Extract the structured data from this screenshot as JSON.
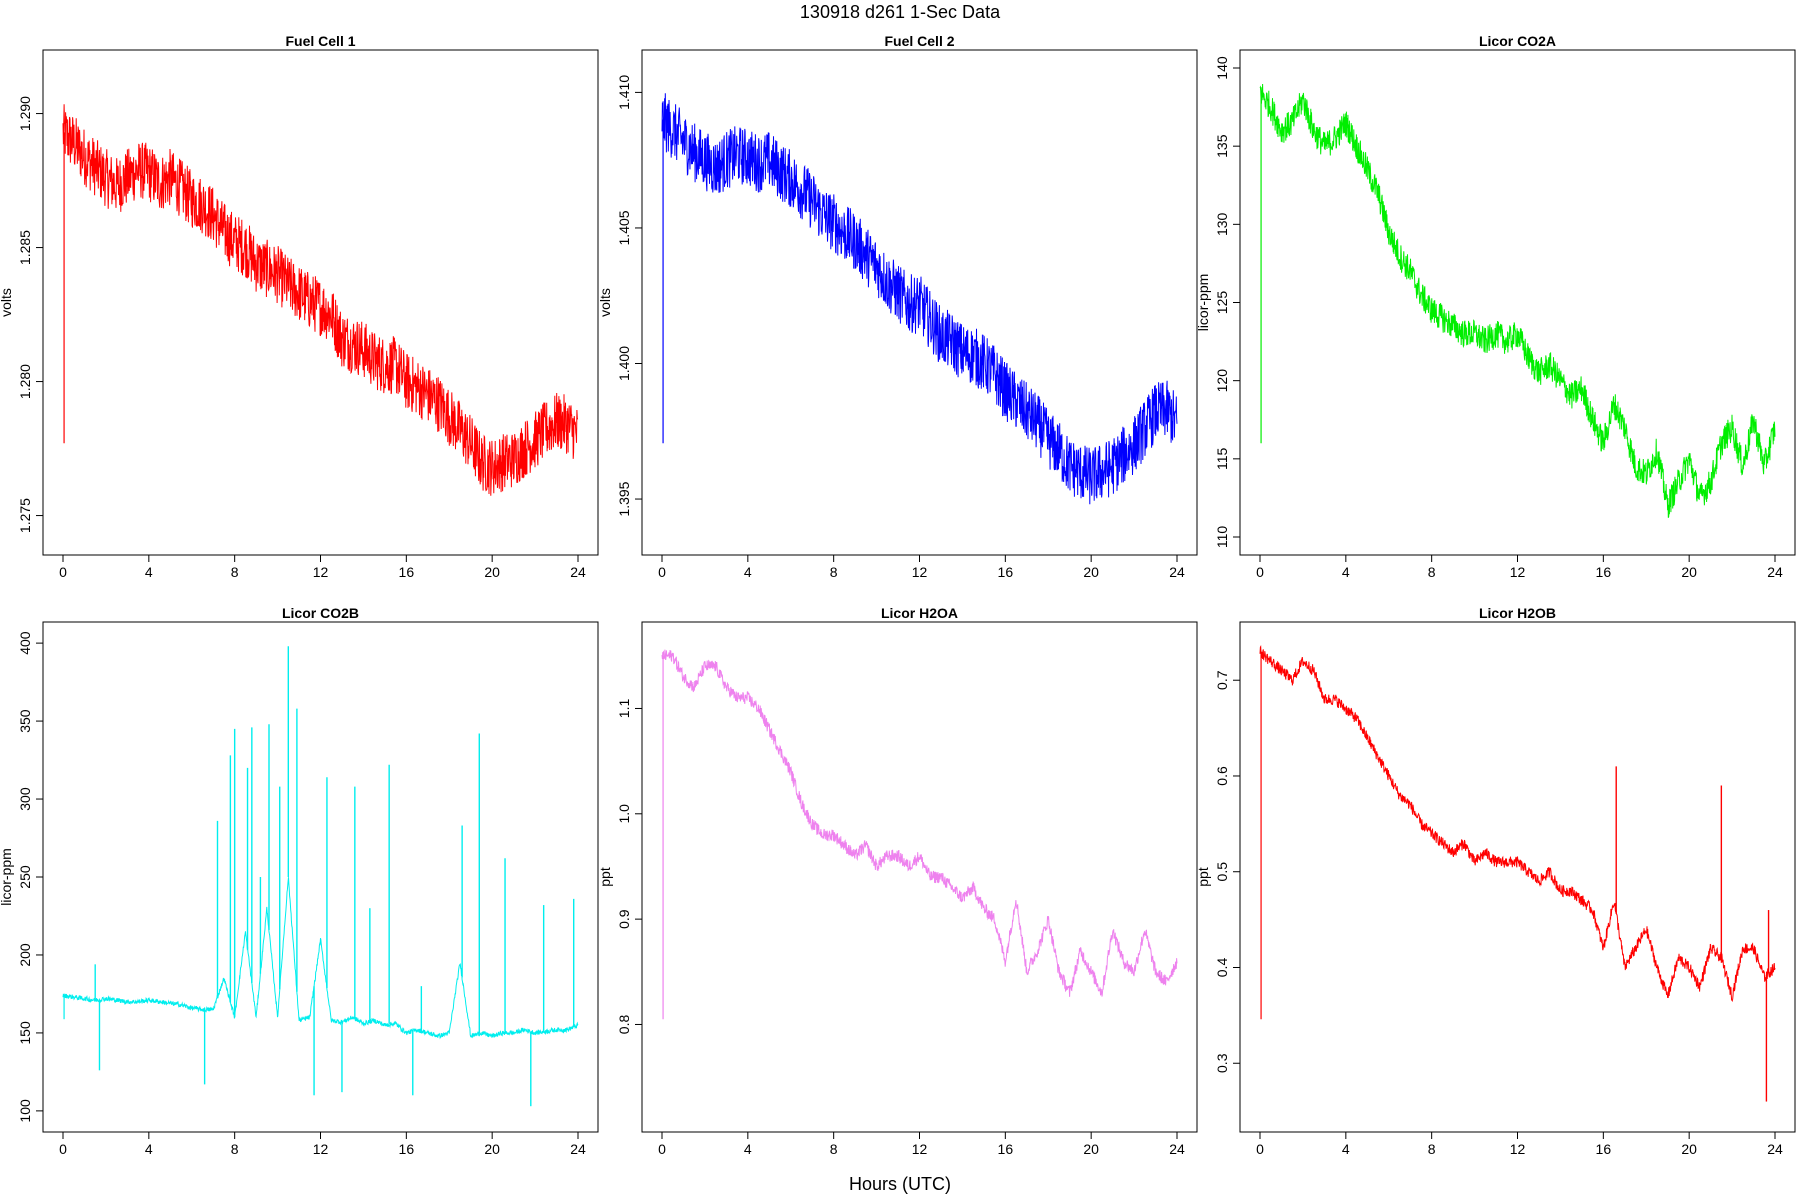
{
  "figure": {
    "title": "130918   d261   1-Sec Data",
    "xlabel": "Hours (UTC)"
  },
  "chart_data": [
    {
      "type": "line",
      "title": "Fuel Cell 1",
      "ylabel": "volts",
      "color": "#ff0000",
      "xlim": [
        0,
        24
      ],
      "ylim": [
        1.2742,
        1.2917
      ],
      "xticks": [
        0,
        4,
        8,
        12,
        16,
        20,
        24
      ],
      "yticks": [
        1.275,
        1.28,
        1.285,
        1.29
      ],
      "ytick_labels": [
        "1.275",
        "1.280",
        "1.285",
        "1.290"
      ],
      "noise": 0.0011,
      "x": [
        0,
        0.5,
        1,
        1.5,
        2,
        2.5,
        3,
        3.5,
        4,
        4.5,
        5,
        5.5,
        6,
        6.5,
        7,
        7.5,
        8,
        8.5,
        9,
        9.5,
        10,
        10.5,
        11,
        11.5,
        12,
        12.5,
        13,
        13.5,
        14,
        14.5,
        15,
        15.5,
        16,
        16.5,
        17,
        17.5,
        18,
        18.5,
        19,
        19.5,
        20,
        20.5,
        21,
        21.5,
        22,
        22.5,
        23,
        23.5,
        24
      ],
      "y": [
        1.2893,
        1.2889,
        1.2884,
        1.288,
        1.2876,
        1.2873,
        1.2876,
        1.2879,
        1.2878,
        1.2874,
        1.2876,
        1.2872,
        1.2868,
        1.2866,
        1.2862,
        1.2856,
        1.2852,
        1.285,
        1.2844,
        1.2842,
        1.284,
        1.2836,
        1.2833,
        1.283,
        1.2828,
        1.2825,
        1.2816,
        1.2814,
        1.2812,
        1.2808,
        1.2806,
        1.2806,
        1.28,
        1.2798,
        1.2795,
        1.2792,
        1.2787,
        1.2782,
        1.2777,
        1.277,
        1.2768,
        1.277,
        1.2771,
        1.2775,
        1.2778,
        1.2782,
        1.2785,
        1.2784,
        1.278
      ]
    },
    {
      "type": "line",
      "title": "Fuel Cell 2",
      "ylabel": "volts",
      "color": "#0000ff",
      "xlim": [
        0,
        24
      ],
      "ylim": [
        1.3936,
        1.4109
      ],
      "xticks": [
        0,
        4,
        8,
        12,
        16,
        20,
        24
      ],
      "yticks": [
        1.395,
        1.4,
        1.405,
        1.41
      ],
      "ytick_labels": [
        "1.395",
        "1.400",
        "1.405",
        "1.410"
      ],
      "noise": 0.0011,
      "x": [
        0,
        0.5,
        1,
        1.5,
        2,
        2.5,
        3,
        3.5,
        4,
        4.5,
        5,
        5.5,
        6,
        6.5,
        7,
        7.5,
        8,
        8.5,
        9,
        9.5,
        10,
        10.5,
        11,
        11.5,
        12,
        12.5,
        13,
        13.5,
        14,
        14.5,
        15,
        15.5,
        16,
        16.5,
        17,
        17.5,
        18,
        18.5,
        19,
        19.5,
        20,
        20.5,
        21,
        21.5,
        22,
        22.5,
        23,
        23.5,
        24
      ],
      "y": [
        1.409,
        1.4086,
        1.4082,
        1.4078,
        1.4075,
        1.4072,
        1.4075,
        1.4077,
        1.4076,
        1.4074,
        1.4075,
        1.4071,
        1.4068,
        1.4064,
        1.406,
        1.4055,
        1.4052,
        1.4048,
        1.4045,
        1.404,
        1.4036,
        1.403,
        1.4026,
        1.4022,
        1.4022,
        1.4016,
        1.401,
        1.4008,
        1.4004,
        1.4003,
        1.4,
        1.3996,
        1.399,
        1.3986,
        1.3982,
        1.3978,
        1.3972,
        1.3968,
        1.3962,
        1.396,
        1.3958,
        1.396,
        1.3962,
        1.3966,
        1.397,
        1.3976,
        1.3982,
        1.3983,
        1.3978
      ]
    },
    {
      "type": "line",
      "title": "Licor CO2A",
      "ylabel": "licor-ppm",
      "color": "#00ee00",
      "xlim": [
        0,
        24
      ],
      "ylim": [
        110,
        140
      ],
      "xticks": [
        0,
        4,
        8,
        12,
        16,
        20,
        24
      ],
      "yticks": [
        110,
        115,
        120,
        125,
        130,
        135,
        140
      ],
      "ytick_labels": [
        "110",
        "115",
        "120",
        "125",
        "130",
        "135",
        "140"
      ],
      "noise": 0.9,
      "x": [
        0,
        0.5,
        1,
        1.5,
        2,
        2.5,
        3,
        3.5,
        4,
        4.5,
        5,
        5.5,
        6,
        6.5,
        7,
        7.5,
        8,
        8.5,
        9,
        9.5,
        10,
        10.5,
        11,
        11.5,
        12,
        12.5,
        13,
        13.5,
        14,
        14.5,
        15,
        15.5,
        16,
        16.5,
        17,
        17.5,
        18,
        18.5,
        19,
        19.5,
        20,
        20.5,
        21,
        21.5,
        22,
        22.5,
        23,
        23.5,
        24
      ],
      "y": [
        138.5,
        137.5,
        136,
        136.5,
        138,
        136,
        135,
        135.5,
        136.5,
        135,
        133.5,
        132,
        129.5,
        128,
        127,
        125.5,
        124.5,
        124,
        123.5,
        123,
        123,
        122.5,
        123,
        122.5,
        123,
        121.5,
        120.5,
        121,
        120,
        119,
        119.5,
        117.5,
        116,
        118.5,
        117,
        114.5,
        114,
        115.5,
        112,
        113.5,
        115,
        112.5,
        113.5,
        116,
        117,
        114.5,
        117.5,
        114.5,
        117
      ]
    },
    {
      "type": "line",
      "title": "Licor CO2B",
      "ylabel": "licor-ppm",
      "color": "#00eeee",
      "xlim": [
        0,
        24
      ],
      "ylim": [
        98,
        402
      ],
      "xticks": [
        0,
        4,
        8,
        12,
        16,
        20,
        24
      ],
      "yticks": [
        100,
        150,
        200,
        250,
        300,
        350,
        400
      ],
      "ytick_labels": [
        "100",
        "150",
        "200",
        "250",
        "300",
        "350",
        "400"
      ],
      "noise": 1.5,
      "x": [
        0,
        0.5,
        1,
        1.5,
        2,
        2.5,
        3,
        3.5,
        4,
        4.5,
        5,
        5.5,
        6,
        6.5,
        7,
        7.5,
        8,
        8.5,
        9,
        9.5,
        10,
        10.5,
        11,
        11.5,
        12,
        12.5,
        13,
        13.5,
        14,
        14.5,
        15,
        15.5,
        16,
        16.5,
        17,
        17.5,
        18,
        18.5,
        19,
        19.5,
        20,
        20.5,
        21,
        21.5,
        22,
        22.5,
        23,
        23.5,
        24
      ],
      "y": [
        174,
        173,
        172,
        171,
        172,
        171,
        170,
        170,
        171,
        170,
        169,
        168,
        166,
        165,
        165,
        185,
        160,
        215,
        160,
        230,
        160,
        250,
        158,
        160,
        210,
        158,
        157,
        160,
        156,
        158,
        155,
        156,
        150,
        152,
        150,
        148,
        150,
        195,
        148,
        150,
        148,
        150,
        150,
        152,
        150,
        151,
        152,
        152,
        155
      ],
      "spikes": [
        {
          "x": 1.5,
          "y": 194
        },
        {
          "x": 1.7,
          "y": 126
        },
        {
          "x": 6.6,
          "y": 117
        },
        {
          "x": 7.2,
          "y": 286
        },
        {
          "x": 7.8,
          "y": 328
        },
        {
          "x": 8.0,
          "y": 345
        },
        {
          "x": 8.6,
          "y": 320
        },
        {
          "x": 8.8,
          "y": 346
        },
        {
          "x": 9.2,
          "y": 250
        },
        {
          "x": 9.6,
          "y": 348
        },
        {
          "x": 10.1,
          "y": 308
        },
        {
          "x": 10.5,
          "y": 398
        },
        {
          "x": 10.9,
          "y": 358
        },
        {
          "x": 11.7,
          "y": 110
        },
        {
          "x": 12.3,
          "y": 314
        },
        {
          "x": 13.0,
          "y": 112
        },
        {
          "x": 13.6,
          "y": 308
        },
        {
          "x": 14.3,
          "y": 230
        },
        {
          "x": 15.2,
          "y": 322
        },
        {
          "x": 16.3,
          "y": 110
        },
        {
          "x": 16.7,
          "y": 180
        },
        {
          "x": 18.6,
          "y": 283
        },
        {
          "x": 19.4,
          "y": 342
        },
        {
          "x": 20.6,
          "y": 262
        },
        {
          "x": 21.8,
          "y": 103
        },
        {
          "x": 22.4,
          "y": 232
        },
        {
          "x": 23.8,
          "y": 236
        }
      ]
    },
    {
      "type": "line",
      "title": "Licor H2OA",
      "ylabel": "ppt",
      "color": "#ee82ee",
      "xlim": [
        0,
        24
      ],
      "ylim": [
        0.715,
        1.165
      ],
      "xticks": [
        0,
        4,
        8,
        12,
        16,
        20,
        24
      ],
      "yticks": [
        0.8,
        0.9,
        1.0,
        1.1
      ],
      "ytick_labels": [
        "0.8",
        "0.9",
        "1.0",
        "1.1"
      ],
      "noise": 0.006,
      "x": [
        0,
        0.5,
        1,
        1.5,
        2,
        2.5,
        3,
        3.5,
        4,
        4.5,
        5,
        5.5,
        6,
        6.5,
        7,
        7.5,
        8,
        8.5,
        9,
        9.5,
        10,
        10.5,
        11,
        11.5,
        12,
        12.5,
        13,
        13.5,
        14,
        14.5,
        15,
        15.5,
        16,
        16.5,
        17,
        17.5,
        18,
        18.5,
        19,
        19.5,
        20,
        20.5,
        21,
        21.5,
        22,
        22.5,
        23,
        23.5,
        24
      ],
      "y": [
        1.15,
        1.15,
        1.13,
        1.12,
        1.14,
        1.14,
        1.12,
        1.11,
        1.11,
        1.1,
        1.08,
        1.06,
        1.04,
        1.01,
        0.99,
        0.98,
        0.98,
        0.97,
        0.96,
        0.97,
        0.95,
        0.96,
        0.96,
        0.95,
        0.96,
        0.94,
        0.94,
        0.93,
        0.92,
        0.93,
        0.91,
        0.9,
        0.86,
        0.92,
        0.85,
        0.87,
        0.9,
        0.85,
        0.83,
        0.87,
        0.85,
        0.83,
        0.89,
        0.86,
        0.85,
        0.89,
        0.85,
        0.84,
        0.86
      ]
    },
    {
      "type": "line",
      "title": "Licor H2OB",
      "ylabel": "ppt",
      "color": "#ff0000",
      "xlim": [
        0,
        24
      ],
      "ylim": [
        0.247,
        0.742
      ],
      "xticks": [
        0,
        4,
        8,
        12,
        16,
        20,
        24
      ],
      "yticks": [
        0.3,
        0.4,
        0.5,
        0.6,
        0.7
      ],
      "ytick_labels": [
        "0.3",
        "0.4",
        "0.5",
        "0.6",
        "0.7"
      ],
      "noise": 0.006,
      "x": [
        0,
        0.5,
        1,
        1.5,
        2,
        2.5,
        3,
        3.5,
        4,
        4.5,
        5,
        5.5,
        6,
        6.5,
        7,
        7.5,
        8,
        8.5,
        9,
        9.5,
        10,
        10.5,
        11,
        11.5,
        12,
        12.5,
        13,
        13.5,
        14,
        14.5,
        15,
        15.5,
        16,
        16.5,
        17,
        17.5,
        18,
        18.5,
        19,
        19.5,
        20,
        20.5,
        21,
        21.5,
        22,
        22.5,
        23,
        23.5,
        24
      ],
      "y": [
        0.73,
        0.72,
        0.71,
        0.7,
        0.72,
        0.71,
        0.68,
        0.68,
        0.67,
        0.66,
        0.64,
        0.62,
        0.6,
        0.58,
        0.57,
        0.55,
        0.54,
        0.53,
        0.52,
        0.53,
        0.51,
        0.52,
        0.51,
        0.51,
        0.51,
        0.5,
        0.49,
        0.5,
        0.48,
        0.48,
        0.47,
        0.46,
        0.42,
        0.47,
        0.4,
        0.42,
        0.44,
        0.4,
        0.37,
        0.41,
        0.4,
        0.38,
        0.42,
        0.41,
        0.37,
        0.42,
        0.42,
        0.39,
        0.4
      ],
      "spikes": [
        {
          "x": 16.6,
          "y": 0.61
        },
        {
          "x": 21.5,
          "y": 0.59
        },
        {
          "x": 23.6,
          "y": 0.26
        },
        {
          "x": 23.7,
          "y": 0.46
        }
      ]
    }
  ]
}
